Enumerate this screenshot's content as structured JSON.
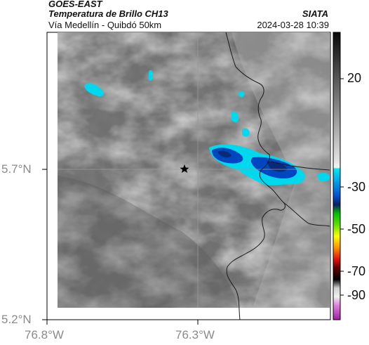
{
  "header": {
    "product": "GOES-EAST",
    "title": "Temperatura de Brillo CH13",
    "region": "Vía Medellín - Quibdó 50km",
    "org": "SIATA",
    "timestamp": "2024-03-28 10:39"
  },
  "map": {
    "lat_ticks": [
      "5.7°N",
      "5.2°N"
    ],
    "lon_ticks": [
      "76.8°W",
      "76.3°W"
    ],
    "marker": "star-marker",
    "border_color": "#1a1a1a",
    "gridline_color": "#9a9a9a"
  },
  "colorbar": {
    "labels": [
      "20",
      "-30",
      "-50",
      "-70",
      "-90"
    ],
    "colors": {
      "warm_gray": "#808080",
      "cyan": "#00e0f0",
      "blue": "#0040c0",
      "green": "#20d020",
      "yellow": "#ffff00",
      "red": "#e01010",
      "black": "#000000",
      "magenta": "#c040c0"
    }
  }
}
